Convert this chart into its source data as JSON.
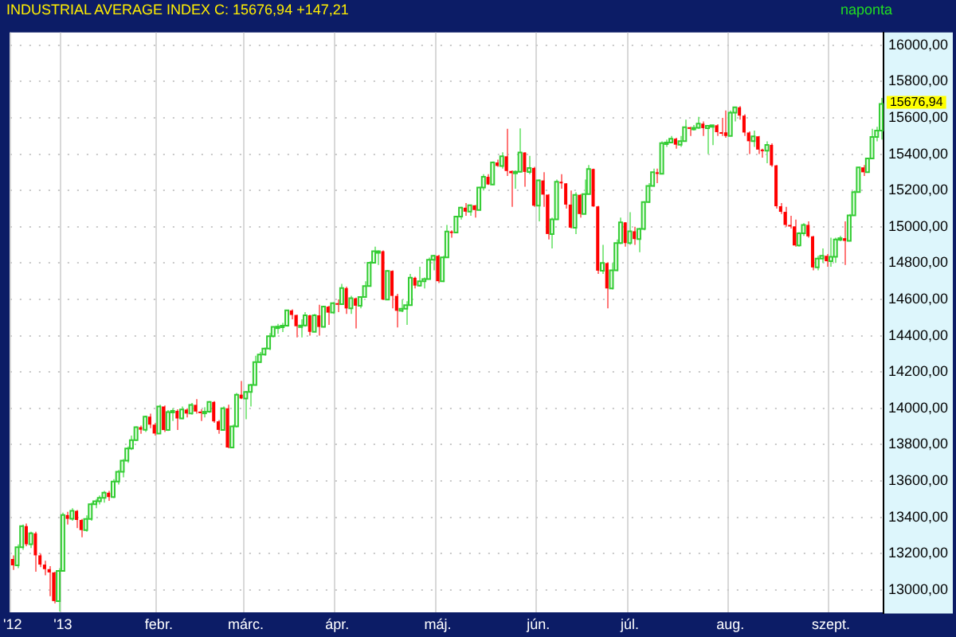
{
  "chart_data": {
    "type": "candlestick",
    "title": "INDUSTRIAL AVERAGE INDEX C: 15676,94 +147,21",
    "subtitle": "naponta",
    "categories": [
      "'12",
      null,
      null,
      null,
      null,
      null,
      null,
      null,
      null,
      null,
      null,
      "'13",
      null,
      null,
      null,
      null,
      null,
      null,
      null,
      null,
      null,
      null,
      null,
      null,
      null,
      null,
      null,
      null,
      null,
      null,
      null,
      null,
      "febr.",
      null,
      null,
      null,
      null,
      null,
      null,
      null,
      null,
      null,
      null,
      null,
      null,
      null,
      null,
      null,
      null,
      null,
      null,
      "márc.",
      null,
      null,
      null,
      null,
      null,
      null,
      null,
      null,
      null,
      null,
      null,
      null,
      null,
      null,
      null,
      null,
      null,
      null,
      null,
      "ápr.",
      null,
      null,
      null,
      null,
      null,
      null,
      null,
      null,
      null,
      null,
      null,
      null,
      null,
      null,
      null,
      null,
      null,
      null,
      null,
      null,
      null,
      "máj.",
      null,
      null,
      null,
      null,
      null,
      null,
      null,
      null,
      null,
      null,
      null,
      null,
      null,
      null,
      null,
      null,
      null,
      null,
      null,
      null,
      null,
      "jún.",
      null,
      null,
      null,
      null,
      null,
      null,
      null,
      null,
      null,
      null,
      null,
      null,
      null,
      null,
      null,
      null,
      null,
      null,
      null,
      "júl.",
      null,
      null,
      null,
      null,
      null,
      null,
      null,
      null,
      null,
      null,
      null,
      null,
      null,
      null,
      null,
      null,
      null,
      null,
      null,
      null,
      null,
      "aug.",
      null,
      null,
      null,
      null,
      null,
      null,
      null,
      null,
      null,
      null,
      null,
      null,
      null,
      null,
      null,
      null,
      null,
      null,
      null,
      null,
      null,
      "szept.",
      null,
      null,
      null,
      null,
      null,
      null,
      null,
      null,
      null,
      null,
      null
    ],
    "ohlc": [
      [
        13170,
        13190,
        13110,
        13135
      ],
      [
        13135,
        13250,
        13120,
        13235
      ],
      [
        13235,
        13360,
        13220,
        13351
      ],
      [
        13351,
        13365,
        13240,
        13251
      ],
      [
        13251,
        13320,
        13230,
        13311
      ],
      [
        13311,
        13320,
        13100,
        13190
      ],
      [
        13190,
        13200,
        13125,
        13139
      ],
      [
        13139,
        13160,
        13080,
        13114
      ],
      [
        13114,
        13130,
        12965,
        13096
      ],
      [
        13096,
        13100,
        12925,
        12938
      ],
      [
        12938,
        13120,
        12880,
        13104
      ],
      [
        13104,
        13425,
        13104,
        13412
      ],
      [
        13412,
        13430,
        13360,
        13391
      ],
      [
        13391,
        13450,
        13380,
        13435
      ],
      [
        13435,
        13440,
        13340,
        13385
      ],
      [
        13385,
        13390,
        13290,
        13329
      ],
      [
        13329,
        13410,
        13320,
        13390
      ],
      [
        13390,
        13480,
        13380,
        13471
      ],
      [
        13471,
        13500,
        13450,
        13488
      ],
      [
        13488,
        13520,
        13470,
        13507
      ],
      [
        13507,
        13545,
        13480,
        13535
      ],
      [
        13535,
        13545,
        13490,
        13511
      ],
      [
        13511,
        13610,
        13505,
        13596
      ],
      [
        13596,
        13660,
        13580,
        13650
      ],
      [
        13650,
        13720,
        13620,
        13712
      ],
      [
        13712,
        13790,
        13700,
        13779
      ],
      [
        13779,
        13850,
        13770,
        13825
      ],
      [
        13825,
        13900,
        13820,
        13896
      ],
      [
        13896,
        13905,
        13860,
        13882
      ],
      [
        13882,
        13960,
        13870,
        13954
      ],
      [
        13954,
        13970,
        13890,
        13910
      ],
      [
        13910,
        13920,
        13850,
        13861
      ],
      [
        13861,
        14020,
        13860,
        14010
      ],
      [
        14010,
        14015,
        13870,
        13880
      ],
      [
        13880,
        13990,
        13875,
        13979
      ],
      [
        13979,
        14000,
        13930,
        13986
      ],
      [
        13986,
        13995,
        13880,
        13944
      ],
      [
        13944,
        14010,
        13940,
        13993
      ],
      [
        13993,
        14000,
        13950,
        13971
      ],
      [
        13971,
        14030,
        13965,
        14019
      ],
      [
        14019,
        14050,
        13970,
        13982
      ],
      [
        13982,
        13995,
        13930,
        13973
      ],
      [
        13973,
        14005,
        13950,
        13981
      ],
      [
        13981,
        14040,
        13975,
        14035
      ],
      [
        14035,
        14040,
        13920,
        13928
      ],
      [
        13928,
        13935,
        13860,
        13881
      ],
      [
        13881,
        14010,
        13880,
        14000
      ],
      [
        14000,
        14020,
        13780,
        13784
      ],
      [
        13784,
        13910,
        13780,
        13900
      ],
      [
        13900,
        14085,
        13895,
        14075
      ],
      [
        14075,
        14150,
        14050,
        14054
      ],
      [
        14054,
        14095,
        13940,
        14090
      ],
      [
        14090,
        14135,
        14010,
        14128
      ],
      [
        14128,
        14290,
        14125,
        14254
      ],
      [
        14254,
        14310,
        14250,
        14296
      ],
      [
        14296,
        14335,
        14290,
        14329
      ],
      [
        14329,
        14415,
        14320,
        14397
      ],
      [
        14397,
        14450,
        14390,
        14448
      ],
      [
        14448,
        14465,
        14410,
        14450
      ],
      [
        14450,
        14470,
        14420,
        14455
      ],
      [
        14455,
        14540,
        14450,
        14539
      ],
      [
        14539,
        14545,
        14490,
        14514
      ],
      [
        14514,
        14515,
        14390,
        14452
      ],
      [
        14452,
        14490,
        14390,
        14456
      ],
      [
        14456,
        14530,
        14450,
        14512
      ],
      [
        14512,
        14515,
        14400,
        14421
      ],
      [
        14421,
        14520,
        14420,
        14512
      ],
      [
        14512,
        14570,
        14400,
        14448
      ],
      [
        14448,
        14565,
        14445,
        14560
      ],
      [
        14560,
        14565,
        14460,
        14527
      ],
      [
        14527,
        14585,
        14520,
        14579
      ],
      [
        14579,
        14600,
        14530,
        14573
      ],
      [
        14573,
        14685,
        14570,
        14662
      ],
      [
        14662,
        14670,
        14520,
        14550
      ],
      [
        14550,
        14620,
        14520,
        14606
      ],
      [
        14606,
        14610,
        14440,
        14565
      ],
      [
        14565,
        14615,
        14550,
        14613
      ],
      [
        14613,
        14700,
        14610,
        14673
      ],
      [
        14673,
        14810,
        14670,
        14802
      ],
      [
        14802,
        14890,
        14800,
        14865
      ],
      [
        14865,
        14870,
        14790,
        14865
      ],
      [
        14865,
        14870,
        14595,
        14599
      ],
      [
        14599,
        14760,
        14595,
        14757
      ],
      [
        14757,
        14760,
        14550,
        14619
      ],
      [
        14619,
        14630,
        14445,
        14537
      ],
      [
        14537,
        14600,
        14530,
        14548
      ],
      [
        14548,
        14590,
        14460,
        14568
      ],
      [
        14568,
        14740,
        14565,
        14719
      ],
      [
        14719,
        14725,
        14660,
        14676
      ],
      [
        14676,
        14780,
        14670,
        14700
      ],
      [
        14700,
        14720,
        14660,
        14712
      ],
      [
        14712,
        14830,
        14710,
        14818
      ],
      [
        14818,
        14845,
        14760,
        14840
      ],
      [
        14840,
        14845,
        14690,
        14700
      ],
      [
        14700,
        14840,
        14695,
        14831
      ],
      [
        14831,
        15010,
        14830,
        14974
      ],
      [
        14974,
        14980,
        14940,
        14968
      ],
      [
        14968,
        15060,
        14965,
        15056
      ],
      [
        15056,
        15110,
        15040,
        15105
      ],
      [
        15105,
        15130,
        15060,
        15083
      ],
      [
        15083,
        15120,
        15060,
        15118
      ],
      [
        15118,
        15120,
        15050,
        15092
      ],
      [
        15092,
        15220,
        15090,
        15216
      ],
      [
        15216,
        15290,
        15200,
        15275
      ],
      [
        15275,
        15290,
        15230,
        15233
      ],
      [
        15233,
        15360,
        15230,
        15354
      ],
      [
        15354,
        15370,
        15330,
        15335
      ],
      [
        15335,
        15410,
        15320,
        15388
      ],
      [
        15388,
        15540,
        15280,
        15307
      ],
      [
        15307,
        15310,
        15110,
        15295
      ],
      [
        15295,
        15310,
        15210,
        15303
      ],
      [
        15303,
        15542,
        15300,
        15409
      ],
      [
        15409,
        15410,
        15220,
        15302
      ],
      [
        15302,
        15390,
        15290,
        15324
      ],
      [
        15324,
        15330,
        15110,
        15116
      ],
      [
        15116,
        15260,
        15030,
        15255
      ],
      [
        15255,
        15300,
        15110,
        15177
      ],
      [
        15177,
        15180,
        14930,
        14960
      ],
      [
        14960,
        15050,
        14880,
        15041
      ],
      [
        15041,
        15260,
        15040,
        15248
      ],
      [
        15248,
        15290,
        15210,
        15239
      ],
      [
        15239,
        15240,
        15100,
        15122
      ],
      [
        15122,
        15200,
        14990,
        14995
      ],
      [
        14995,
        15190,
        14960,
        15176
      ],
      [
        15176,
        15180,
        15050,
        15070
      ],
      [
        15070,
        15260,
        15070,
        15180
      ],
      [
        15180,
        15340,
        15180,
        15318
      ],
      [
        15318,
        15320,
        15110,
        15112
      ],
      [
        15112,
        15115,
        14740,
        14758
      ],
      [
        14758,
        14900,
        14740,
        14800
      ],
      [
        14800,
        14805,
        14550,
        14660
      ],
      [
        14660,
        14800,
        14655,
        14760
      ],
      [
        14760,
        14930,
        14755,
        14910
      ],
      [
        14910,
        15050,
        14905,
        15024
      ],
      [
        15024,
        15025,
        14890,
        14910
      ],
      [
        14910,
        15080,
        14900,
        14975
      ],
      [
        14975,
        15000,
        14900,
        14932
      ],
      [
        14932,
        14995,
        14860,
        14988
      ],
      [
        14988,
        15140,
        14980,
        15136
      ],
      [
        15136,
        15240,
        15130,
        15225
      ],
      [
        15225,
        15320,
        15220,
        15300
      ],
      [
        15300,
        15320,
        15240,
        15292
      ],
      [
        15292,
        15470,
        15290,
        15461
      ],
      [
        15461,
        15480,
        15440,
        15464
      ],
      [
        15464,
        15500,
        15460,
        15485
      ],
      [
        15485,
        15490,
        15430,
        15452
      ],
      [
        15452,
        15500,
        15440,
        15471
      ],
      [
        15471,
        15590,
        15470,
        15548
      ],
      [
        15548,
        15550,
        15500,
        15543
      ],
      [
        15543,
        15560,
        15530,
        15545
      ],
      [
        15545,
        15605,
        15540,
        15568
      ],
      [
        15568,
        15580,
        15500,
        15543
      ],
      [
        15543,
        15560,
        15400,
        15556
      ],
      [
        15556,
        15560,
        15450,
        15559
      ],
      [
        15559,
        15565,
        15500,
        15521
      ],
      [
        15521,
        15600,
        15500,
        15520
      ],
      [
        15520,
        15640,
        15490,
        15500
      ],
      [
        15500,
        15640,
        15500,
        15628
      ],
      [
        15628,
        15660,
        15580,
        15658
      ],
      [
        15658,
        15665,
        15590,
        15612
      ],
      [
        15612,
        15620,
        15500,
        15519
      ],
      [
        15519,
        15525,
        15400,
        15471
      ],
      [
        15471,
        15530,
        15440,
        15498
      ],
      [
        15498,
        15500,
        15400,
        15425
      ],
      [
        15425,
        15430,
        15380,
        15419
      ],
      [
        15419,
        15470,
        15350,
        15451
      ],
      [
        15451,
        15460,
        15330,
        15338
      ],
      [
        15338,
        15340,
        15100,
        15113
      ],
      [
        15113,
        15130,
        15070,
        15082
      ],
      [
        15082,
        15110,
        15000,
        15010
      ],
      [
        15010,
        15060,
        14990,
        15002
      ],
      [
        15002,
        15040,
        14890,
        14897
      ],
      [
        14897,
        14970,
        14890,
        14964
      ],
      [
        14964,
        15020,
        14950,
        15010
      ],
      [
        15010,
        15030,
        14940,
        14947
      ],
      [
        14947,
        14950,
        14760,
        14776
      ],
      [
        14776,
        14840,
        14760,
        14825
      ],
      [
        14825,
        14880,
        14800,
        14840
      ],
      [
        14840,
        14850,
        14780,
        14810
      ],
      [
        14810,
        14940,
        14780,
        14834
      ],
      [
        14834,
        14940,
        14800,
        14930
      ],
      [
        14930,
        14950,
        14920,
        14937
      ],
      [
        14937,
        15030,
        14790,
        14922
      ],
      [
        14922,
        15070,
        14920,
        15063
      ],
      [
        15063,
        15200,
        15060,
        15191
      ],
      [
        15191,
        15330,
        15190,
        15327
      ],
      [
        15327,
        15340,
        15280,
        15300
      ],
      [
        15300,
        15380,
        15300,
        15376
      ],
      [
        15376,
        15540,
        15376,
        15495
      ],
      [
        15495,
        15550,
        15470,
        15530
      ],
      [
        15530,
        15710,
        15480,
        15676.94
      ]
    ],
    "ylim": [
      12870,
      16070
    ],
    "yticks": [
      {
        "value": 13000,
        "label": "13000,00"
      },
      {
        "value": 13200,
        "label": "13200,00"
      },
      {
        "value": 13400,
        "label": "13400,00"
      },
      {
        "value": 13600,
        "label": "13600,00"
      },
      {
        "value": 13800,
        "label": "13800,00"
      },
      {
        "value": 14000,
        "label": "14000,00"
      },
      {
        "value": 14200,
        "label": "14200,00"
      },
      {
        "value": 14400,
        "label": "14400,00"
      },
      {
        "value": 14600,
        "label": "14600,00"
      },
      {
        "value": 14800,
        "label": "14800,00"
      },
      {
        "value": 15000,
        "label": "15000,00"
      },
      {
        "value": 15200,
        "label": "15200,00"
      },
      {
        "value": 15400,
        "label": "15400,00"
      },
      {
        "value": 15600,
        "label": "15600,00"
      },
      {
        "value": 15800,
        "label": "15800,00"
      },
      {
        "value": 16000,
        "label": "16000,00"
      }
    ],
    "grid": true,
    "annotations": [
      "15676,94"
    ]
  }
}
